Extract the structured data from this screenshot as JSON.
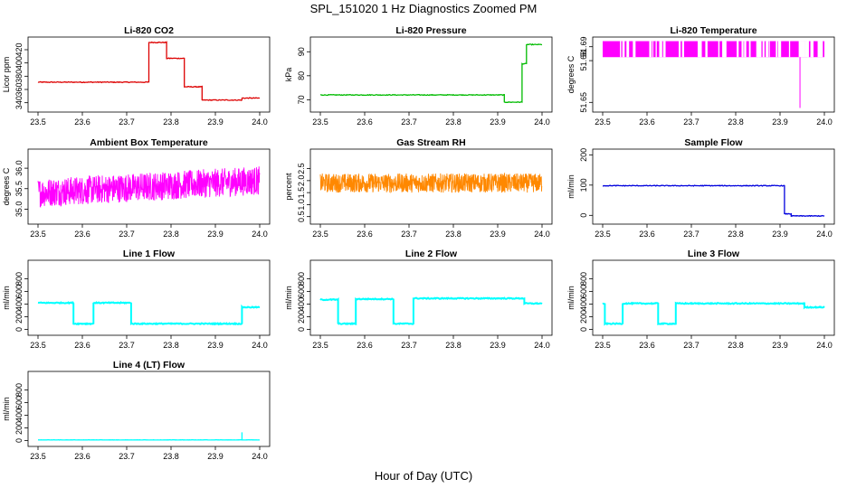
{
  "figure": {
    "title": "SPL_151020  1 Hz Diagnostics Zoomed PM",
    "xlabel": "Hour of Day (UTC)"
  },
  "chart_data": [
    {
      "type": "line",
      "title": "Li-820 CO2",
      "ylabel": "Licor ppm",
      "color": "#dd0000",
      "xlim": [
        23.5,
        24.0
      ],
      "ylim": [
        330,
        435
      ],
      "xticks": [
        "23.5",
        "23.6",
        "23.7",
        "23.8",
        "23.9",
        "24.0"
      ],
      "yticks": [
        {
          "v": 340,
          "label": "340"
        },
        {
          "v": 360,
          "label": "360"
        },
        {
          "v": 380,
          "label": "380"
        },
        {
          "v": 400,
          "label": "400"
        },
        {
          "v": 420,
          "label": "420"
        }
      ],
      "noise": 0.6,
      "segments": [
        [
          23.5,
          23.75,
          371
        ],
        [
          23.75,
          23.79,
          431
        ],
        [
          23.79,
          23.83,
          407
        ],
        [
          23.83,
          23.87,
          364
        ],
        [
          23.87,
          23.96,
          344
        ],
        [
          23.96,
          24.0,
          347
        ]
      ]
    },
    {
      "type": "line",
      "title": "Li-820 Pressure",
      "ylabel": "kPa",
      "color": "#00bb00",
      "xlim": [
        23.5,
        24.0
      ],
      "ylim": [
        66,
        95
      ],
      "xticks": [
        "23.5",
        "23.6",
        "23.7",
        "23.8",
        "23.9",
        "24.0"
      ],
      "yticks": [
        {
          "v": 70,
          "label": "70"
        },
        {
          "v": 80,
          "label": "80"
        },
        {
          "v": 90,
          "label": "90"
        }
      ],
      "noise": 0.15,
      "segments": [
        [
          23.5,
          23.915,
          72
        ],
        [
          23.915,
          23.955,
          69
        ],
        [
          23.955,
          23.965,
          85
        ],
        [
          23.965,
          24.0,
          93
        ]
      ]
    },
    {
      "type": "spikes",
      "title": "Li-820 Temperature",
      "ylabel": "degrees C",
      "color": "#ff00ff",
      "xlim": [
        23.5,
        24.0
      ],
      "ylim": [
        51.645,
        51.695
      ],
      "xticks": [
        "23.5",
        "23.6",
        "23.7",
        "23.8",
        "23.9",
        "24.0"
      ],
      "yticks": [
        {
          "v": 51.65,
          "label": "51.65"
        },
        {
          "v": 51.68,
          "label": "51.68"
        },
        {
          "v": 51.69,
          "label": "51.69"
        }
      ],
      "base": 51.6825,
      "top": 51.694,
      "drop_x": 23.945,
      "drop_y": 51.646
    },
    {
      "type": "noise",
      "title": "Ambient Box Temperature",
      "ylabel": "degrees C",
      "color": "#ff00ff",
      "xlim": [
        23.5,
        24.0
      ],
      "ylim": [
        34.7,
        36.4
      ],
      "xticks": [
        "23.5",
        "23.6",
        "23.7",
        "23.8",
        "23.9",
        "24.0"
      ],
      "yticks": [
        {
          "v": 35.0,
          "label": "35.0"
        },
        {
          "v": 35.5,
          "label": "35.5"
        },
        {
          "v": 36.0,
          "label": "36.0"
        }
      ],
      "lo": 35.05,
      "hi": 35.75,
      "drift": 0.3
    },
    {
      "type": "noise",
      "title": "Gas Stream RH",
      "ylabel": "percent",
      "color": "#ff8800",
      "xlim": [
        23.5,
        24.0
      ],
      "ylim": [
        0.3,
        3.2
      ],
      "xticks": [
        "23.5",
        "23.6",
        "23.7",
        "23.8",
        "23.9",
        "24.0"
      ],
      "yticks": [
        {
          "v": 0.5,
          "label": "0.5"
        },
        {
          "v": 1.0,
          "label": "1.0"
        },
        {
          "v": 1.5,
          "label": "1.5"
        },
        {
          "v": 2.0,
          "label": "2.0"
        },
        {
          "v": 2.5,
          "label": "2.5"
        }
      ],
      "lo": 1.5,
      "hi": 2.3,
      "drift": 0
    },
    {
      "type": "line",
      "title": "Sample Flow",
      "ylabel": "ml/min",
      "color": "#0000dd",
      "xlim": [
        23.5,
        24.0
      ],
      "ylim": [
        -20,
        210
      ],
      "xticks": [
        "23.5",
        "23.6",
        "23.7",
        "23.8",
        "23.9",
        "24.0"
      ],
      "yticks": [
        {
          "v": 0,
          "label": "0"
        },
        {
          "v": 100,
          "label": "100"
        },
        {
          "v": 200,
          "label": "200"
        }
      ],
      "noise": 1.2,
      "segments": [
        [
          23.5,
          23.91,
          98
        ],
        [
          23.91,
          23.925,
          5
        ],
        [
          23.925,
          24.0,
          -2
        ]
      ]
    },
    {
      "type": "line",
      "title": "Line 1 Flow",
      "ylabel": "ml/min",
      "color": "#00ffff",
      "xlim": [
        23.5,
        24.0
      ],
      "ylim": [
        -50,
        1050
      ],
      "xticks": [
        "23.5",
        "23.6",
        "23.7",
        "23.8",
        "23.9",
        "24.0"
      ],
      "yticks": [
        {
          "v": 0,
          "label": "0"
        },
        {
          "v": 200,
          "label": "200"
        },
        {
          "v": 400,
          "label": "400"
        },
        {
          "v": 600,
          "label": "600"
        },
        {
          "v": 800,
          "label": "800"
        }
      ],
      "noise": 8,
      "segments": [
        [
          23.5,
          23.58,
          420
        ],
        [
          23.58,
          23.625,
          90
        ],
        [
          23.625,
          23.71,
          420
        ],
        [
          23.71,
          23.96,
          90
        ],
        [
          23.96,
          24.0,
          350
        ]
      ]
    },
    {
      "type": "line",
      "title": "Line 2 Flow",
      "ylabel": "ml/min",
      "color": "#00ffff",
      "xlim": [
        23.5,
        24.0
      ],
      "ylim": [
        -50,
        1050
      ],
      "xticks": [
        "23.5",
        "23.6",
        "23.7",
        "23.8",
        "23.9",
        "24.0"
      ],
      "yticks": [
        {
          "v": 0,
          "label": "0"
        },
        {
          "v": 200,
          "label": "200"
        },
        {
          "v": 400,
          "label": "400"
        },
        {
          "v": 600,
          "label": "600"
        },
        {
          "v": 800,
          "label": "800"
        }
      ],
      "noise": 8,
      "segments": [
        [
          23.5,
          23.54,
          470
        ],
        [
          23.54,
          23.58,
          90
        ],
        [
          23.58,
          23.665,
          480
        ],
        [
          23.665,
          23.71,
          90
        ],
        [
          23.71,
          23.96,
          490
        ],
        [
          23.96,
          24.0,
          410
        ]
      ]
    },
    {
      "type": "line",
      "title": "Line 3 Flow",
      "ylabel": "ml/min",
      "color": "#00ffff",
      "xlim": [
        23.5,
        24.0
      ],
      "ylim": [
        -50,
        1050
      ],
      "xticks": [
        "23.5",
        "23.6",
        "23.7",
        "23.8",
        "23.9",
        "24.0"
      ],
      "yticks": [
        {
          "v": 0,
          "label": "0"
        },
        {
          "v": 200,
          "label": "200"
        },
        {
          "v": 400,
          "label": "400"
        },
        {
          "v": 600,
          "label": "600"
        },
        {
          "v": 800,
          "label": "800"
        }
      ],
      "noise": 8,
      "segments": [
        [
          23.5,
          23.505,
          400
        ],
        [
          23.505,
          23.545,
          90
        ],
        [
          23.545,
          23.625,
          410
        ],
        [
          23.625,
          23.665,
          90
        ],
        [
          23.665,
          23.955,
          410
        ],
        [
          23.955,
          24.0,
          350
        ]
      ]
    },
    {
      "type": "line",
      "title": "Line 4 (LT) Flow",
      "ylabel": "ml/min",
      "color": "#00ffff",
      "xlim": [
        23.5,
        24.0
      ],
      "ylim": [
        -50,
        1050
      ],
      "xticks": [
        "23.5",
        "23.6",
        "23.7",
        "23.8",
        "23.9",
        "24.0"
      ],
      "yticks": [
        {
          "v": 0,
          "label": "0"
        },
        {
          "v": 200,
          "label": "200"
        },
        {
          "v": 400,
          "label": "400"
        },
        {
          "v": 600,
          "label": "600"
        },
        {
          "v": 800,
          "label": "800"
        }
      ],
      "noise": 2,
      "segments": [
        [
          23.5,
          24.0,
          10
        ]
      ],
      "spike": [
        23.96,
        130
      ]
    }
  ]
}
